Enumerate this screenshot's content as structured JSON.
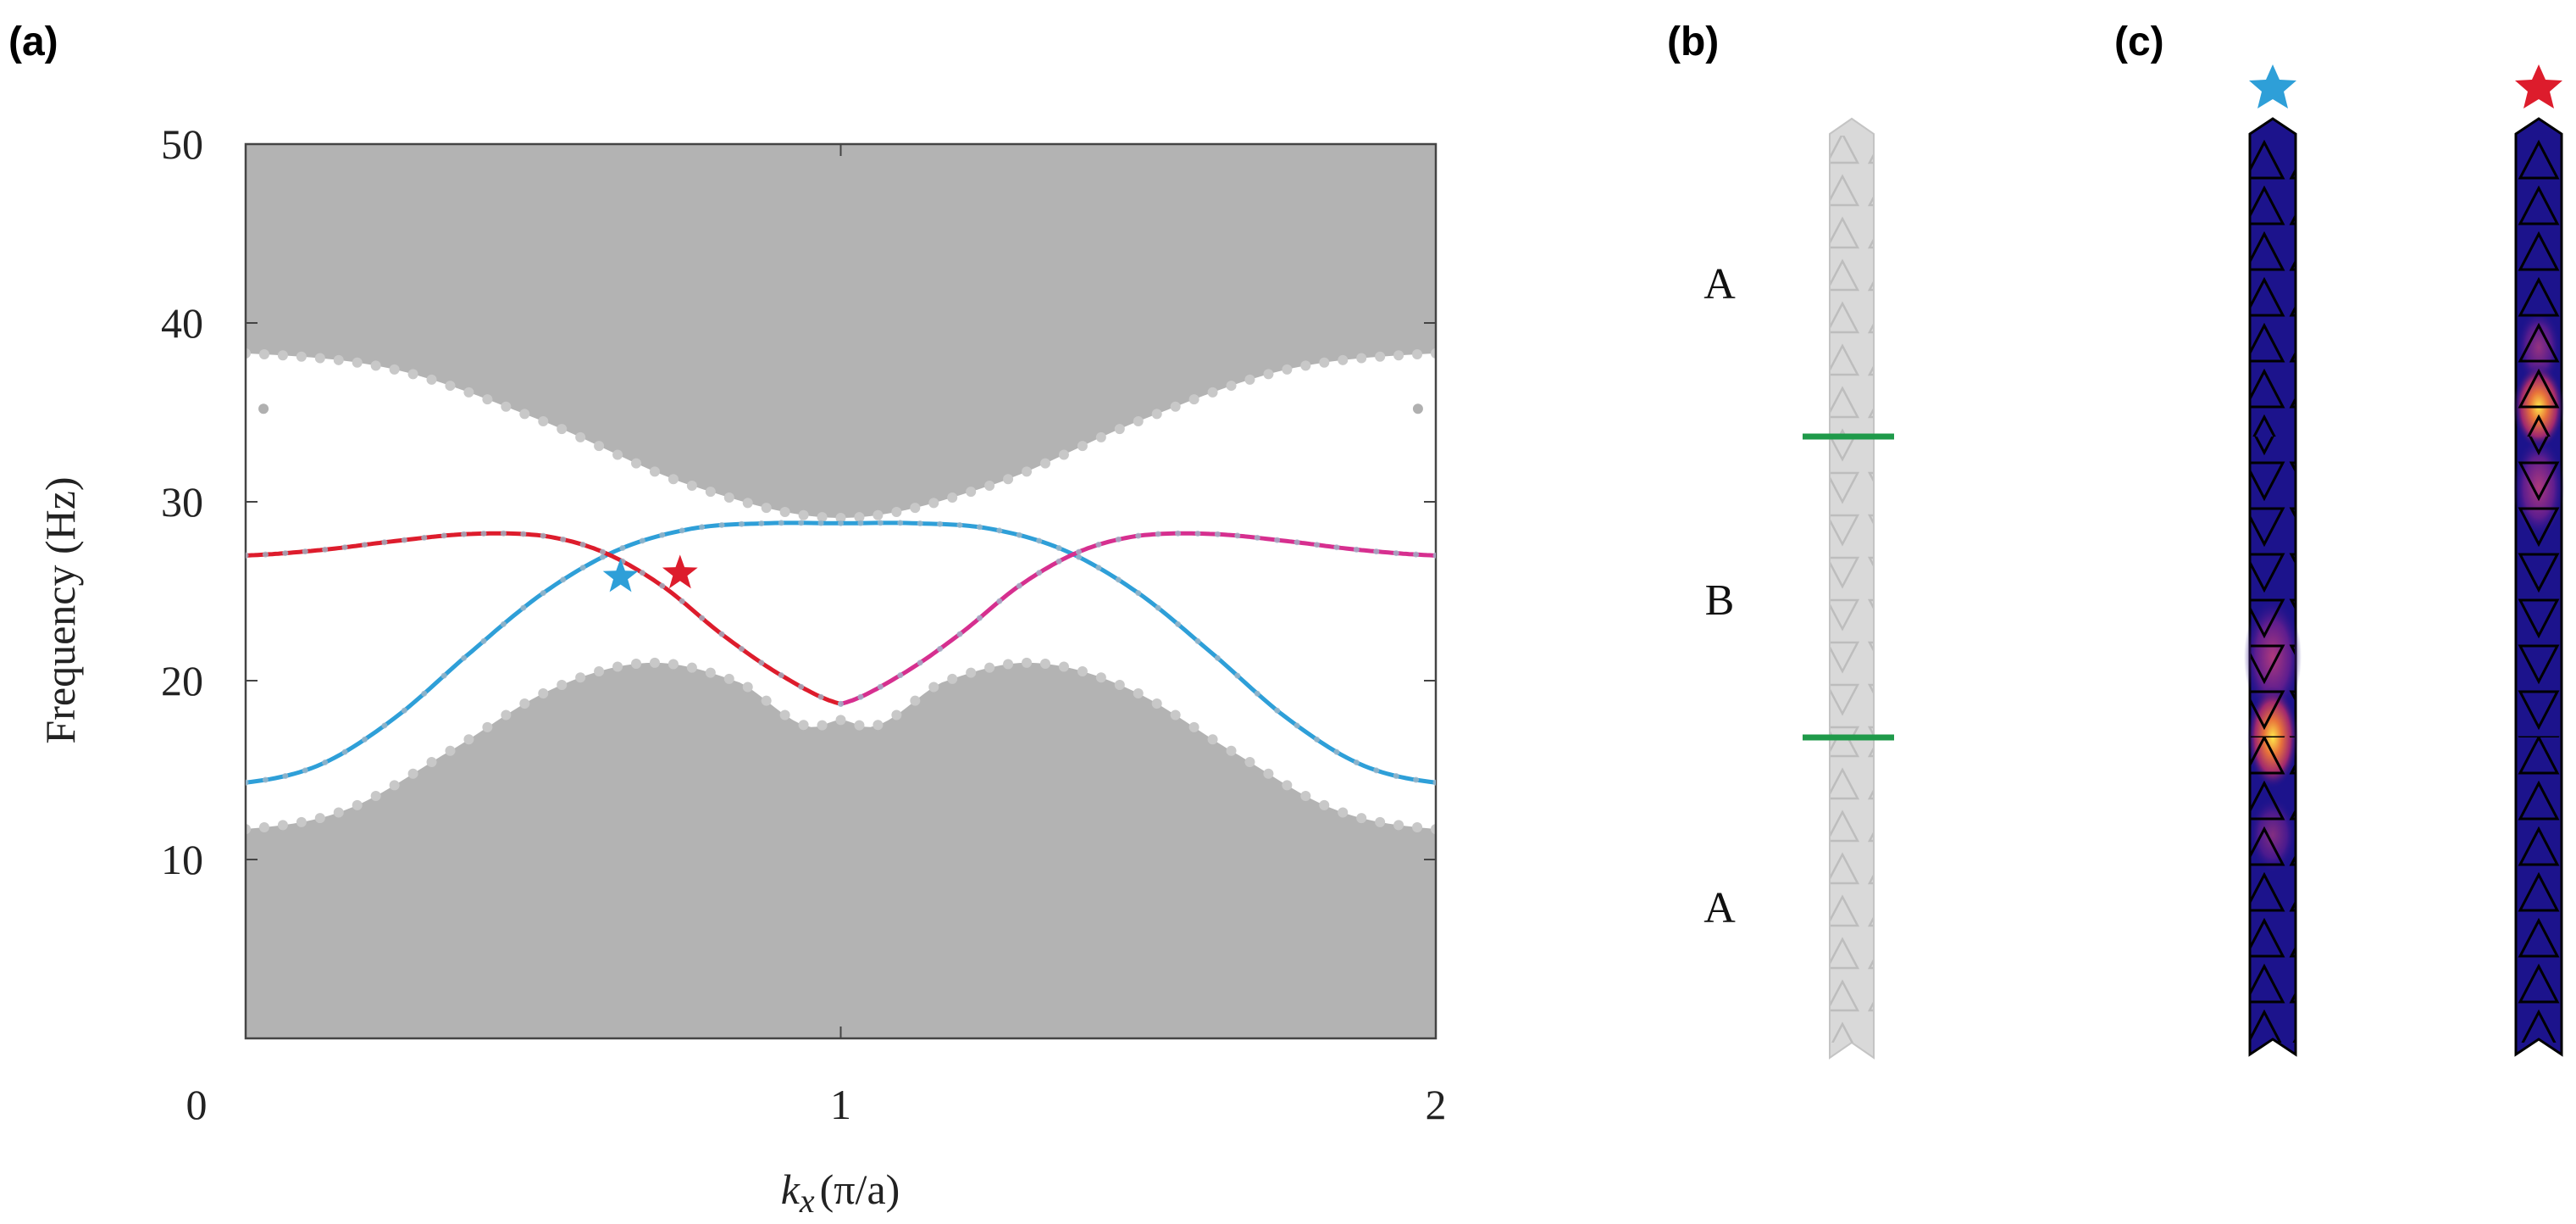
{
  "panels": {
    "a": "(a)",
    "b": "(b)",
    "c": "(c)"
  },
  "colors": {
    "band_gray": "#b3b3b3",
    "band_dot": "#c8c8c8",
    "edge_blue": "#2e9fd8",
    "edge_red": "#dd1c2c",
    "edge_magenta": "#d62f8f",
    "interface_green": "#1f9a4a",
    "strip_gray": "#d9d9d9",
    "field_dark": "#1c138c"
  },
  "chart_data": {
    "type": "line",
    "title": "",
    "xlabel": "k_x (π/a)",
    "xlabel_parts": {
      "k": "k",
      "sub": "x",
      "paren": "(π/a)"
    },
    "ylabel": "Frequency (Hz)",
    "xlim": [
      0,
      2
    ],
    "ylim": [
      0,
      50
    ],
    "x_ticks": [
      "0",
      "1",
      "2"
    ],
    "y_ticks": [
      "10",
      "20",
      "30",
      "40",
      "50"
    ],
    "bulk_bands": {
      "upper_band_lower_edge": {
        "x": [
          0,
          0.25,
          0.5,
          0.75,
          1.0,
          1.25,
          1.5,
          1.75,
          2.0
        ],
        "y": [
          38.3,
          37.4,
          34.5,
          30.9,
          29.1,
          30.9,
          34.5,
          37.4,
          38.3
        ]
      },
      "lower_band_upper_edge": {
        "x": [
          0,
          0.17,
          0.35,
          0.52,
          0.68,
          0.83,
          0.94,
          1.0,
          1.06,
          1.17,
          1.32,
          1.48,
          1.65,
          1.83,
          2.0
        ],
        "y": [
          11.7,
          12.8,
          16.2,
          19.6,
          21.0,
          19.9,
          17.5,
          17.8,
          17.5,
          19.9,
          21.0,
          19.6,
          16.2,
          12.8,
          11.7
        ]
      }
    },
    "series": [
      {
        "name": "edge mode (blue)",
        "color": "#2e9fd8",
        "x": [
          0,
          0.125,
          0.25,
          0.375,
          0.5,
          0.625,
          0.75,
          0.875,
          1.0,
          1.125,
          1.25,
          1.375,
          1.5,
          1.625,
          1.75,
          1.875,
          2.0
        ],
        "y": [
          14.3,
          15.3,
          17.9,
          21.5,
          24.9,
          27.3,
          28.5,
          28.8,
          28.8,
          28.8,
          28.5,
          27.3,
          24.9,
          21.5,
          17.9,
          15.3,
          14.3
        ]
      },
      {
        "name": "edge mode (red)",
        "color": "#dd1c2c",
        "x": [
          0,
          0.125,
          0.25,
          0.375,
          0.5,
          0.6,
          0.7,
          0.8,
          0.9,
          1.0
        ],
        "y": [
          27.0,
          27.3,
          27.8,
          28.2,
          28.1,
          27.2,
          25.3,
          22.6,
          20.3,
          18.7
        ]
      },
      {
        "name": "edge mode (magenta)",
        "color": "#d62f8f",
        "x": [
          1.0,
          1.1,
          1.2,
          1.3,
          1.4,
          1.5,
          1.625,
          1.75,
          1.875,
          2.0
        ],
        "y": [
          18.7,
          20.3,
          22.6,
          25.3,
          27.2,
          28.1,
          28.2,
          27.8,
          27.3,
          27.0
        ]
      }
    ],
    "markers": [
      {
        "name": "blue star",
        "x": 0.63,
        "y": 25.8,
        "color": "#2e9fd8"
      },
      {
        "name": "red star",
        "x": 0.73,
        "y": 26.0,
        "color": "#dd1c2c"
      }
    ],
    "isolated_points": [
      {
        "x": 0.03,
        "y": 35.2
      },
      {
        "x": 1.97,
        "y": 35.2
      }
    ]
  },
  "panel_b": {
    "segment_labels": [
      "A",
      "B",
      "A"
    ]
  },
  "panel_c": {
    "modes": [
      "blue star mode",
      "red star mode"
    ]
  }
}
